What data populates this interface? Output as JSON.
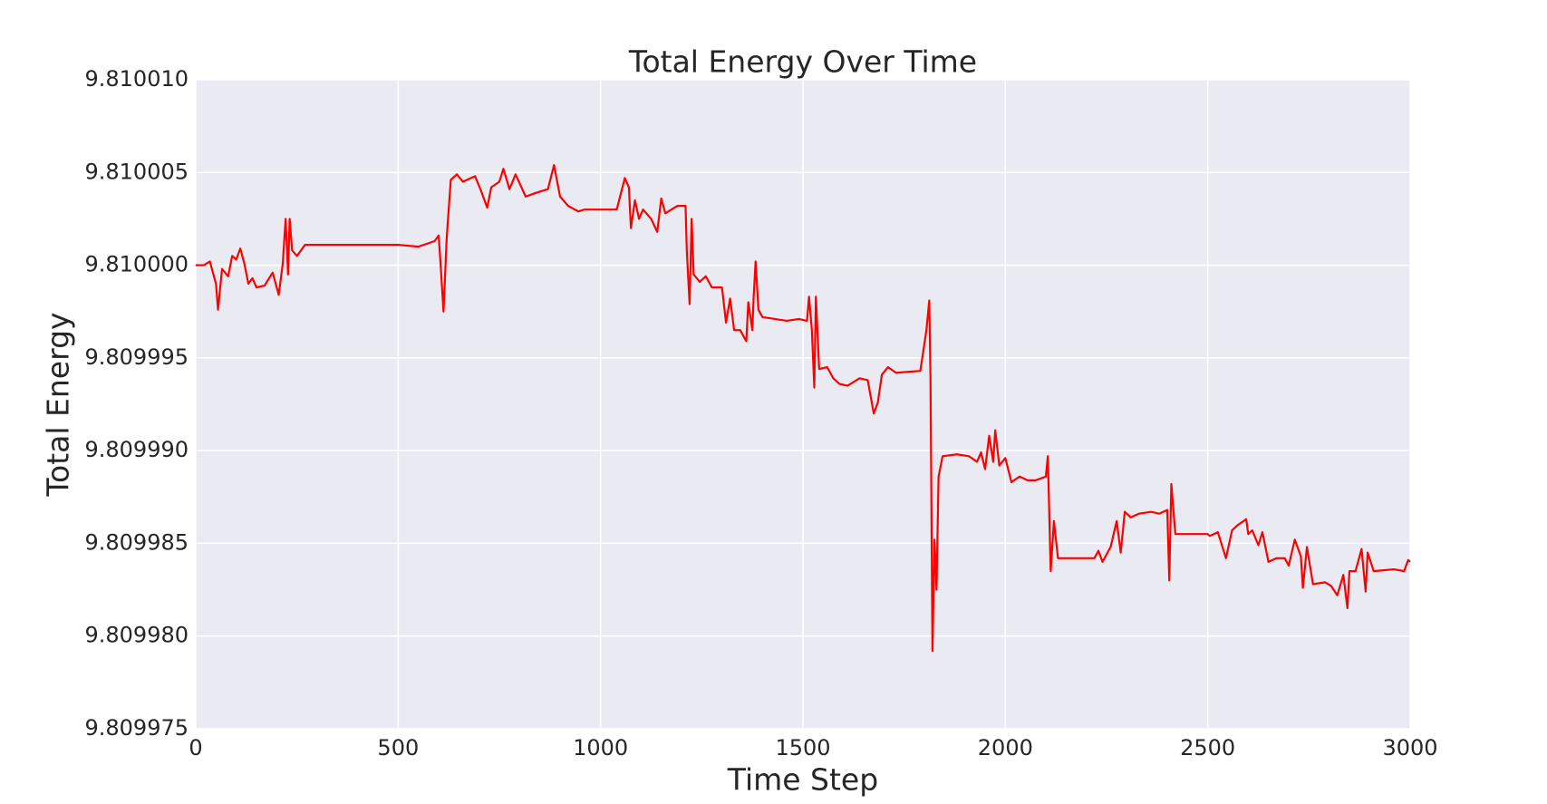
{
  "chart_data": {
    "type": "line",
    "title": "Total Energy Over Time",
    "x_label": "Time Step",
    "y_label": "Total Energy",
    "color": "#ff0000",
    "grid": true,
    "xlim": [
      0,
      3000
    ],
    "xticks": [
      0,
      500,
      1000,
      1500,
      2000,
      2500,
      3000
    ],
    "ylim": [
      9.809975,
      9.81001
    ],
    "yticks": [
      9.809975,
      {
        "value": 9.80998,
        "label": "9.809980"
      },
      9.809985,
      {
        "value": 9.80999,
        "label": "9.809990"
      },
      9.809995,
      {
        "value": 9.81,
        "label": "9.810000"
      },
      9.810005,
      {
        "value": 9.81001,
        "label": "9.810010"
      }
    ],
    "x": [
      0,
      20,
      35,
      50,
      55,
      65,
      80,
      90,
      100,
      110,
      120,
      130,
      140,
      150,
      170,
      190,
      205,
      215,
      222,
      228,
      232,
      238,
      250,
      270,
      300,
      500,
      550,
      590,
      600,
      605,
      612,
      620,
      630,
      645,
      660,
      690,
      705,
      720,
      730,
      750,
      760,
      775,
      790,
      815,
      840,
      870,
      885,
      900,
      920,
      945,
      960,
      980,
      1040,
      1060,
      1070,
      1075,
      1085,
      1095,
      1105,
      1125,
      1140,
      1150,
      1160,
      1190,
      1210,
      1213,
      1220,
      1225,
      1230,
      1245,
      1260,
      1275,
      1300,
      1310,
      1320,
      1330,
      1345,
      1360,
      1365,
      1375,
      1378,
      1383,
      1390,
      1400,
      1460,
      1490,
      1510,
      1515,
      1522,
      1528,
      1532,
      1540,
      1560,
      1575,
      1590,
      1610,
      1640,
      1660,
      1675,
      1685,
      1695,
      1710,
      1730,
      1790,
      1805,
      1812,
      1815,
      1820,
      1825,
      1830,
      1835,
      1845,
      1880,
      1910,
      1930,
      1940,
      1950,
      1960,
      1970,
      1975,
      1985,
      2000,
      2015,
      2035,
      2055,
      2075,
      2100,
      2105,
      2112,
      2120,
      2130,
      2140,
      2155,
      2220,
      2230,
      2240,
      2260,
      2275,
      2285,
      2295,
      2310,
      2330,
      2360,
      2380,
      2400,
      2405,
      2410,
      2420,
      2440,
      2470,
      2500,
      2505,
      2525,
      2545,
      2560,
      2575,
      2595,
      2600,
      2610,
      2625,
      2635,
      2650,
      2670,
      2690,
      2700,
      2715,
      2730,
      2735,
      2745,
      2760,
      2790,
      2805,
      2820,
      2835,
      2845,
      2850,
      2865,
      2880,
      2890,
      2895,
      2910,
      2960,
      2985,
      2995,
      3000
    ],
    "values": [
      9.81,
      9.81,
      9.8100002,
      9.809999,
      9.8099976,
      9.8099998,
      9.8099994,
      9.8100005,
      9.8100003,
      9.8100009,
      9.8100001,
      9.809999,
      9.8099993,
      9.8099988,
      9.8099989,
      9.8099996,
      9.8099984,
      9.8100001,
      9.8100025,
      9.8099995,
      9.8100025,
      9.8100008,
      9.8100005,
      9.8100011,
      9.8100011,
      9.8100011,
      9.810001,
      9.8100013,
      9.8100016,
      9.81,
      9.8099975,
      9.8100015,
      9.8100046,
      9.8100049,
      9.8100045,
      9.8100048,
      9.810004,
      9.8100031,
      9.8100042,
      9.8100045,
      9.8100052,
      9.8100041,
      9.8100049,
      9.8100037,
      9.8100039,
      9.8100041,
      9.8100054,
      9.8100037,
      9.8100032,
      9.8100029,
      9.810003,
      9.810003,
      9.810003,
      9.8100047,
      9.8100042,
      9.810002,
      9.8100035,
      9.8100025,
      9.810003,
      9.8100025,
      9.8100018,
      9.8100036,
      9.8100028,
      9.8100032,
      9.8100032,
      9.8100008,
      9.8099979,
      9.8100025,
      9.8099995,
      9.8099991,
      9.8099994,
      9.8099988,
      9.8099988,
      9.8099969,
      9.8099982,
      9.8099965,
      9.8099965,
      9.8099959,
      9.809998,
      9.8099965,
      9.8099982,
      9.8100002,
      9.8099976,
      9.8099972,
      9.809997,
      9.8099971,
      9.809997,
      9.8099983,
      9.8099965,
      9.8099934,
      9.8099983,
      9.8099944,
      9.8099945,
      9.8099939,
      9.8099936,
      9.8099935,
      9.8099939,
      9.8099938,
      9.809992,
      9.8099926,
      9.8099941,
      9.8099945,
      9.8099942,
      9.8099943,
      9.8099965,
      9.8099981,
      9.809994,
      9.8099792,
      9.8099852,
      9.8099825,
      9.8099886,
      9.8099897,
      9.8099898,
      9.8099897,
      9.8099894,
      9.8099899,
      9.809989,
      9.8099908,
      9.8099894,
      9.8099911,
      9.8099892,
      9.8099896,
      9.8099883,
      9.8099886,
      9.8099884,
      9.8099884,
      9.8099886,
      9.8099897,
      9.8099835,
      9.8099862,
      9.8099842,
      9.8099842,
      9.8099842,
      9.8099842,
      9.8099846,
      9.809984,
      9.8099848,
      9.8099862,
      9.8099845,
      9.8099867,
      9.8099864,
      9.8099866,
      9.8099867,
      9.8099866,
      9.8099868,
      9.809983,
      9.8099882,
      9.8099855,
      9.8099855,
      9.8099855,
      9.8099855,
      9.8099854,
      9.8099856,
      9.8099842,
      9.8099857,
      9.809986,
      9.8099863,
      9.8099855,
      9.8099857,
      9.8099849,
      9.8099856,
      9.809984,
      9.8099842,
      9.8099842,
      9.8099838,
      9.8099852,
      9.8099843,
      9.8099826,
      9.8099848,
      9.8099828,
      9.8099829,
      9.8099827,
      9.8099822,
      9.8099833,
      9.8099815,
      9.8099835,
      9.8099835,
      9.8099847,
      9.8099824,
      9.8099845,
      9.8099835,
      9.8099836,
      9.8099835,
      9.8099841,
      9.809984
    ]
  }
}
